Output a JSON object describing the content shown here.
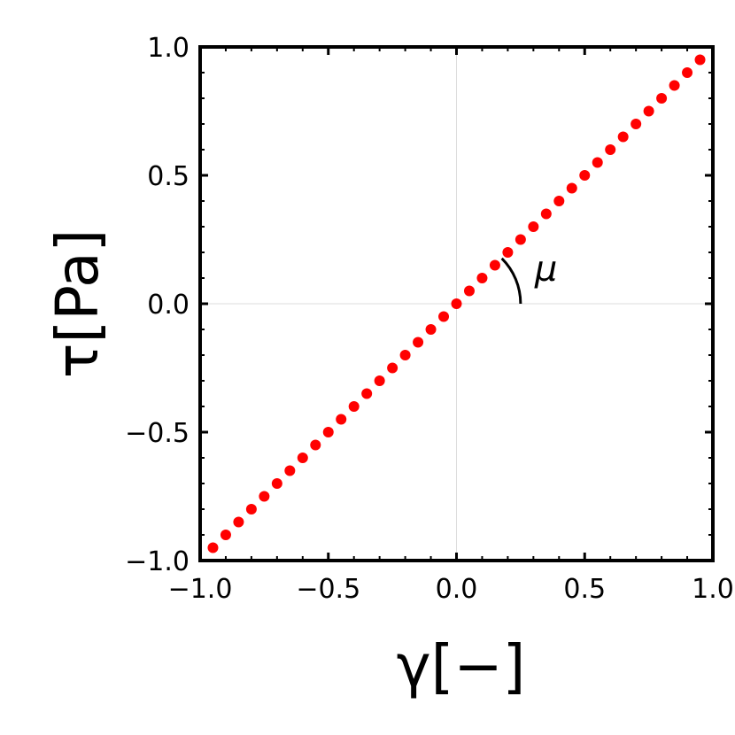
{
  "chart_data": {
    "type": "scatter",
    "xlabel": "γ[−]",
    "ylabel": "τ[Pa]",
    "xlim": [
      -1.0,
      1.0
    ],
    "ylim": [
      -1.0,
      1.0
    ],
    "x_ticks": [
      "−1.0",
      "−0.5",
      "0.0",
      "0.5",
      "1.0"
    ],
    "y_ticks": [
      "1.0",
      "0.5",
      "0.0",
      "−0.5",
      "−1.0"
    ],
    "x_tick_values": [
      -1.0,
      -0.5,
      0.0,
      0.5,
      1.0
    ],
    "y_tick_values": [
      1.0,
      0.5,
      0.0,
      -0.5,
      -1.0
    ],
    "grid": "zero-lines",
    "series": [
      {
        "color": "#ff0000",
        "x": [
          -0.95,
          -0.9,
          -0.85,
          -0.8,
          -0.75,
          -0.7,
          -0.65,
          -0.6,
          -0.55,
          -0.5,
          -0.45,
          -0.4,
          -0.35,
          -0.3,
          -0.25,
          -0.2,
          -0.15,
          -0.1,
          -0.05,
          0.0,
          0.05,
          0.1,
          0.15,
          0.2,
          0.25,
          0.3,
          0.35,
          0.4,
          0.45,
          0.5,
          0.55,
          0.6,
          0.65,
          0.7,
          0.75,
          0.8,
          0.85,
          0.9,
          0.95
        ],
        "y": [
          -0.95,
          -0.9,
          -0.85,
          -0.8,
          -0.75,
          -0.7,
          -0.65,
          -0.6,
          -0.55,
          -0.5,
          -0.45,
          -0.4,
          -0.35,
          -0.3,
          -0.25,
          -0.2,
          -0.15,
          -0.1,
          -0.05,
          0.0,
          0.05,
          0.1,
          0.15,
          0.2,
          0.25,
          0.3,
          0.35,
          0.4,
          0.45,
          0.5,
          0.55,
          0.6,
          0.65,
          0.7,
          0.75,
          0.8,
          0.85,
          0.9,
          0.95
        ]
      }
    ],
    "annotation": {
      "text": "μ",
      "angle_deg": 45,
      "arc_radius": 0.25
    }
  }
}
